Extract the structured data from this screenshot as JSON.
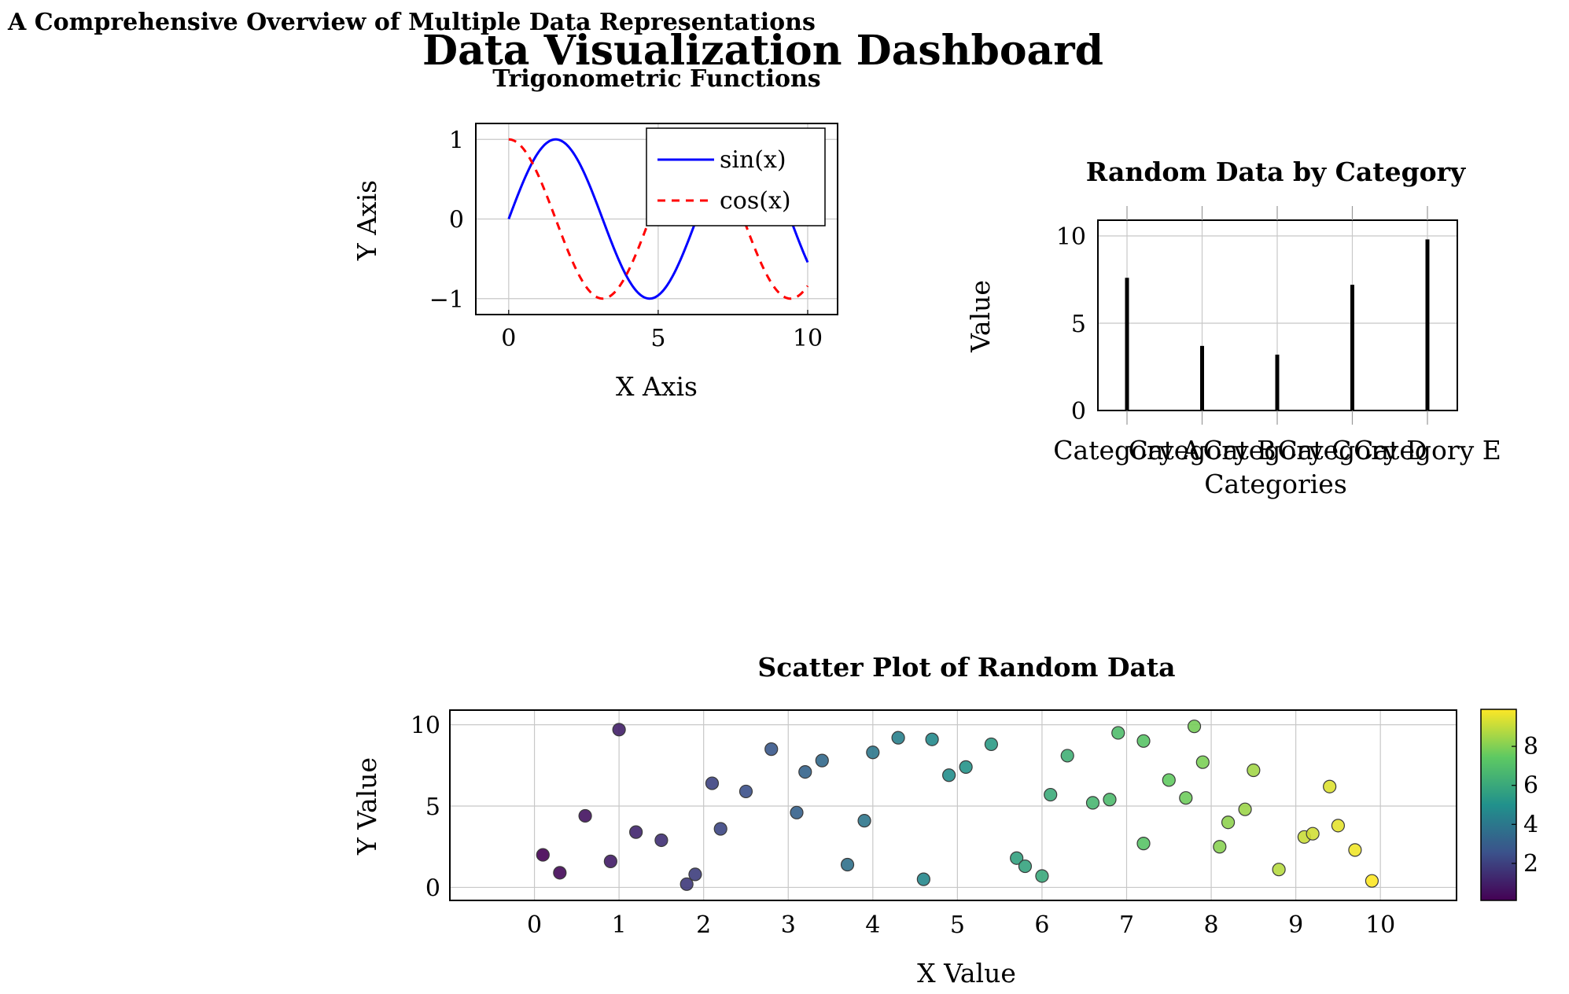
{
  "super_title": "A Comprehensive Overview of Multiple Data Representations",
  "dashboard_title": "Data Visualization Dashboard",
  "colors": {
    "sin": "#0000ff",
    "cos": "#ff0000",
    "bar": "#000000",
    "grid": "#c8c8c8",
    "viridis": [
      "#440154",
      "#3b528b",
      "#21918c",
      "#5ec962",
      "#fde725"
    ]
  },
  "chart_data": [
    {
      "type": "line",
      "title": "Trigonometric Functions",
      "xlabel": "X Axis",
      "ylabel": "Y Axis",
      "xlim": [
        -1.1,
        11
      ],
      "ylim": [
        -1.2,
        1.2
      ],
      "xticks": [
        "0",
        "5",
        "10"
      ],
      "xtick_values": [
        0,
        5,
        10
      ],
      "yticks": [
        "−1",
        "0",
        "1"
      ],
      "ytick_values": [
        -1,
        0,
        1
      ],
      "grid": true,
      "legend_position": "top-right",
      "series": [
        {
          "name": "sin(x)",
          "function": "sin",
          "x_range": [
            0,
            10
          ],
          "style": "solid",
          "color": "#0000ff"
        },
        {
          "name": "cos(x)",
          "function": "cos",
          "x_range": [
            0,
            10
          ],
          "style": "dashed",
          "color": "#ff0000"
        }
      ]
    },
    {
      "type": "bar",
      "title": "Random Data by Category",
      "xlabel": "Categories",
      "ylabel": "Value",
      "categories": [
        "Category A",
        "Category B",
        "Category C",
        "Category D",
        "Category E"
      ],
      "values": [
        7.6,
        3.7,
        3.2,
        7.2,
        9.8
      ],
      "ylim": [
        0,
        10.9
      ],
      "yticks": [
        "0",
        "5",
        "10"
      ],
      "ytick_values": [
        0,
        5,
        10
      ],
      "grid": true
    },
    {
      "type": "scatter",
      "title": "Scatter Plot of Random Data",
      "xlabel": "X Value",
      "ylabel": "Y Value",
      "xlim": [
        -1,
        10.9
      ],
      "ylim": [
        -0.8,
        10.9
      ],
      "xticks": [
        "0",
        "1",
        "2",
        "3",
        "4",
        "5",
        "6",
        "7",
        "8",
        "9",
        "10"
      ],
      "xtick_values": [
        0,
        1,
        2,
        3,
        4,
        5,
        6,
        7,
        8,
        9,
        10
      ],
      "yticks": [
        "0",
        "5",
        "10"
      ],
      "ytick_values": [
        0,
        5,
        10
      ],
      "grid": true,
      "colorbar": {
        "ticks": [
          "2",
          "4",
          "6",
          "8"
        ],
        "tick_values": [
          2,
          4,
          6,
          8
        ],
        "range": [
          0.1,
          9.9
        ]
      },
      "points": [
        [
          0.1,
          2.0
        ],
        [
          0.3,
          0.9
        ],
        [
          0.6,
          4.4
        ],
        [
          0.9,
          1.6
        ],
        [
          1.0,
          9.7
        ],
        [
          1.2,
          3.4
        ],
        [
          1.5,
          2.9
        ],
        [
          1.8,
          0.2
        ],
        [
          1.9,
          0.8
        ],
        [
          2.1,
          6.4
        ],
        [
          2.2,
          3.6
        ],
        [
          2.5,
          5.9
        ],
        [
          2.8,
          8.5
        ],
        [
          3.1,
          4.6
        ],
        [
          3.2,
          7.1
        ],
        [
          3.4,
          7.8
        ],
        [
          3.7,
          1.4
        ],
        [
          3.9,
          4.1
        ],
        [
          4.0,
          8.3
        ],
        [
          4.3,
          9.2
        ],
        [
          4.6,
          0.5
        ],
        [
          4.7,
          9.1
        ],
        [
          4.9,
          6.9
        ],
        [
          5.1,
          7.4
        ],
        [
          5.4,
          8.8
        ],
        [
          5.7,
          1.8
        ],
        [
          5.8,
          1.3
        ],
        [
          6.0,
          0.7
        ],
        [
          6.1,
          5.7
        ],
        [
          6.3,
          8.1
        ],
        [
          6.6,
          5.2
        ],
        [
          6.8,
          5.4
        ],
        [
          6.9,
          9.5
        ],
        [
          7.2,
          9.0
        ],
        [
          7.2,
          2.7
        ],
        [
          7.5,
          6.6
        ],
        [
          7.7,
          5.5
        ],
        [
          7.8,
          9.9
        ],
        [
          7.9,
          7.7
        ],
        [
          8.1,
          2.5
        ],
        [
          8.2,
          4.0
        ],
        [
          8.4,
          4.8
        ],
        [
          8.5,
          7.2
        ],
        [
          8.8,
          1.1
        ],
        [
          9.1,
          3.1
        ],
        [
          9.2,
          3.3
        ],
        [
          9.4,
          6.2
        ],
        [
          9.5,
          3.8
        ],
        [
          9.7,
          2.3
        ],
        [
          9.9,
          0.4
        ]
      ]
    }
  ]
}
